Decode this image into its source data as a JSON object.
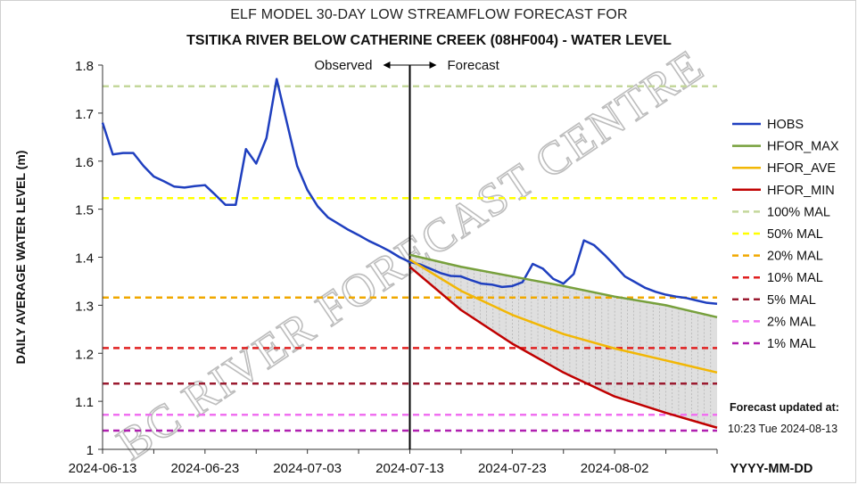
{
  "title": "ELF MODEL 30-DAY LOW STREAMFLOW FORECAST FOR",
  "subtitle": "TSITIKA RIVER BELOW CATHERINE CREEK (08HF004) - WATER LEVEL",
  "forecast_updated_label": "Forecast updated at:",
  "forecast_updated_time": "10:23 Tue 2024-08-13",
  "watermark": "BC RIVER FORECAST CENTRE",
  "chart_data": {
    "type": "line",
    "ylabel": "DAILY AVERAGE WATER LEVEL (m)",
    "xlabel": "YYYY-MM-DD",
    "ylim": [
      1.0,
      1.8
    ],
    "yticks": [
      "1",
      "1.1",
      "1.2",
      "1.3",
      "1.4",
      "1.5",
      "1.6",
      "1.7",
      "1.8"
    ],
    "xrange": [
      "2024-06-13",
      "2024-08-12"
    ],
    "xticks": [
      "2024-06-13",
      "2024-06-23",
      "2024-07-03",
      "2024-07-13",
      "2024-07-23",
      "2024-08-02"
    ],
    "divider_date": "2024-07-13",
    "observed_label": "Observed",
    "forecast_label": "Forecast",
    "grid": false,
    "legend_position": "right",
    "series": [
      {
        "name": "HOBS",
        "color": "#1f3fbf",
        "x": [
          "2024-06-13",
          "2024-06-14",
          "2024-06-15",
          "2024-06-16",
          "2024-06-17",
          "2024-06-18",
          "2024-06-19",
          "2024-06-20",
          "2024-06-21",
          "2024-06-22",
          "2024-06-23",
          "2024-06-24",
          "2024-06-25",
          "2024-06-26",
          "2024-06-27",
          "2024-06-28",
          "2024-06-29",
          "2024-06-30",
          "2024-07-01",
          "2024-07-02",
          "2024-07-03",
          "2024-07-04",
          "2024-07-05",
          "2024-07-06",
          "2024-07-07",
          "2024-07-08",
          "2024-07-09",
          "2024-07-10",
          "2024-07-11",
          "2024-07-12",
          "2024-07-13",
          "2024-07-14",
          "2024-07-15",
          "2024-07-16",
          "2024-07-17",
          "2024-07-18",
          "2024-07-19",
          "2024-07-20",
          "2024-07-21",
          "2024-07-22",
          "2024-07-23",
          "2024-07-24",
          "2024-07-25",
          "2024-07-26",
          "2024-07-27",
          "2024-07-28",
          "2024-07-29",
          "2024-07-30",
          "2024-07-31",
          "2024-08-01",
          "2024-08-02",
          "2024-08-03",
          "2024-08-04",
          "2024-08-05",
          "2024-08-06",
          "2024-08-07",
          "2024-08-08",
          "2024-08-09",
          "2024-08-10",
          "2024-08-11",
          "2024-08-12"
        ],
        "values": [
          1.68,
          1.614,
          1.617,
          1.617,
          1.59,
          1.568,
          1.558,
          1.547,
          1.545,
          1.548,
          1.55,
          1.53,
          1.509,
          1.509,
          1.625,
          1.595,
          1.648,
          1.771,
          1.68,
          1.59,
          1.54,
          1.506,
          1.483,
          1.47,
          1.457,
          1.446,
          1.434,
          1.424,
          1.413,
          1.4,
          1.39,
          1.385,
          1.376,
          1.367,
          1.361,
          1.36,
          1.352,
          1.345,
          1.343,
          1.338,
          1.34,
          1.348,
          1.386,
          1.376,
          1.355,
          1.345,
          1.365,
          1.435,
          1.425,
          1.405,
          1.383,
          1.36,
          1.348,
          1.336,
          1.328,
          1.322,
          1.318,
          1.315,
          1.31,
          1.305,
          1.303
        ]
      },
      {
        "name": "HFOR_MAX",
        "color": "#77a03c",
        "x": [
          "2024-07-13",
          "2024-07-18",
          "2024-07-23",
          "2024-07-28",
          "2024-08-02",
          "2024-08-07",
          "2024-08-12"
        ],
        "values": [
          1.405,
          1.38,
          1.36,
          1.34,
          1.318,
          1.3,
          1.275
        ]
      },
      {
        "name": "HFOR_AVE",
        "color": "#f2b705",
        "x": [
          "2024-07-13",
          "2024-07-18",
          "2024-07-23",
          "2024-07-28",
          "2024-08-02",
          "2024-08-07",
          "2024-08-12"
        ],
        "values": [
          1.395,
          1.33,
          1.28,
          1.24,
          1.21,
          1.185,
          1.16
        ]
      },
      {
        "name": "HFOR_MIN",
        "color": "#c00000",
        "x": [
          "2024-07-13",
          "2024-07-18",
          "2024-07-23",
          "2024-07-28",
          "2024-08-02",
          "2024-08-07",
          "2024-08-12"
        ],
        "values": [
          1.38,
          1.29,
          1.22,
          1.16,
          1.11,
          1.076,
          1.045
        ]
      }
    ],
    "thresholds": [
      {
        "name": "100% MAL",
        "value": 1.756,
        "color": "#c4d79b"
      },
      {
        "name": "50% MAL",
        "value": 1.523,
        "color": "#ffff00"
      },
      {
        "name": "20% MAL",
        "value": 1.316,
        "color": "#f0a800"
      },
      {
        "name": "10% MAL",
        "value": 1.211,
        "color": "#e02020"
      },
      {
        "name": "5% MAL",
        "value": 1.137,
        "color": "#9b1b30"
      },
      {
        "name": "2% MAL",
        "value": 1.072,
        "color": "#f070f0"
      },
      {
        "name": "1% MAL",
        "value": 1.039,
        "color": "#b020b0"
      }
    ],
    "band_fill_color": "#d9d9d9"
  }
}
